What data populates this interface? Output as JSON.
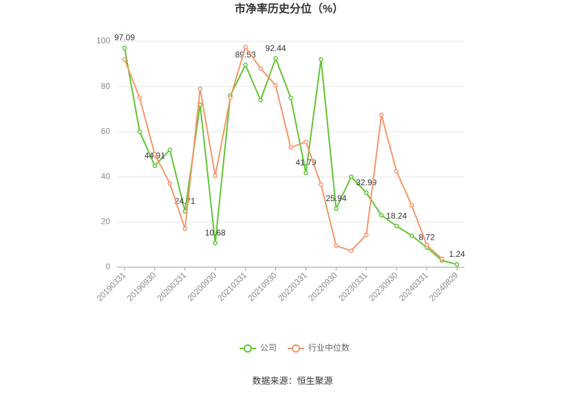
{
  "chart_data": {
    "type": "line",
    "title": "市净率历史分位（%）",
    "categories": [
      "20190331",
      null,
      "20190930",
      null,
      "20200331",
      null,
      "20200930",
      null,
      "20210331",
      null,
      "20210930",
      null,
      "20220331",
      null,
      "20220930",
      null,
      "20230331",
      null,
      "20230930",
      null,
      "20240331",
      null,
      "20240829"
    ],
    "series": [
      {
        "name": "公司",
        "color": "#5ec42f",
        "values": [
          97.09,
          60,
          44.91,
          52,
          24.71,
          72,
          10.68,
          76,
          89.53,
          74,
          92.44,
          75,
          41.79,
          92,
          25.94,
          40,
          32.99,
          23,
          18.24,
          14,
          8.72,
          3,
          1.24
        ],
        "value_labels": [
          "97.09",
          null,
          "44.91",
          null,
          "24.71",
          null,
          "10.68",
          null,
          "89.53",
          null,
          "92.44",
          null,
          "41.79",
          null,
          "25.94",
          null,
          "32.99",
          null,
          "18.24",
          null,
          "8.72",
          null,
          "1.24"
        ]
      },
      {
        "name": "行业中位数",
        "color": "#f49467",
        "values": [
          92,
          75,
          50,
          37,
          17,
          79,
          40.5,
          75,
          97.5,
          88,
          80.5,
          53,
          55.5,
          36.6,
          9.5,
          7.3,
          14.3,
          67.4,
          42.4,
          27.4,
          9.8,
          3.7,
          null
        ]
      }
    ],
    "ylim": [
      0,
      100
    ],
    "yticks": [
      0,
      20,
      40,
      60,
      80,
      100
    ],
    "grid": true,
    "source": "数据来源：恒生聚源"
  }
}
